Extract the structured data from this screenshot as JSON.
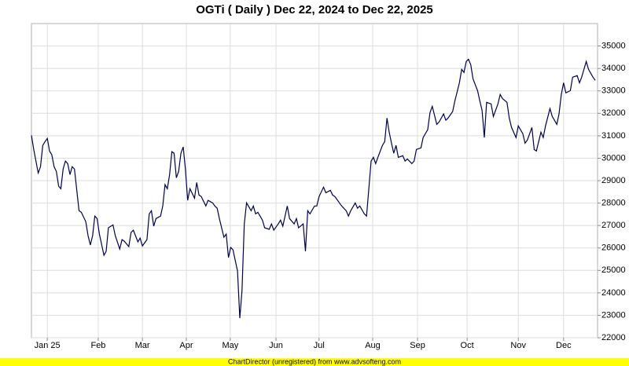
{
  "chart_data": {
    "type": "line",
    "title": "OGTi ( Daily ) Dec 22, 2024 to Dec 22, 2025",
    "footer": "ChartDirector (unregistered) from www.advsofteng.com",
    "x": [
      0,
      1,
      3,
      4,
      5,
      6,
      7,
      8,
      9,
      10,
      11,
      12,
      13,
      14,
      15,
      16,
      17,
      18,
      19,
      21,
      22,
      24,
      25,
      26,
      27,
      28,
      29,
      30,
      32,
      33,
      34,
      36,
      37,
      39,
      40,
      41,
      43,
      44,
      45,
      47,
      48,
      49,
      51,
      52,
      53,
      54,
      55,
      57,
      58,
      59,
      60,
      61,
      62,
      63,
      64,
      65,
      66,
      67,
      68,
      69,
      70,
      72,
      73,
      74,
      75,
      77,
      78,
      80,
      81,
      82,
      83,
      85,
      86,
      87,
      88,
      89,
      91,
      92,
      93,
      94,
      95,
      97,
      98,
      99,
      100,
      102,
      103,
      105,
      106,
      107,
      109,
      110,
      111,
      113,
      114,
      116,
      117,
      118,
      120,
      121,
      122,
      123,
      125,
      126,
      127,
      129,
      130,
      132,
      133,
      134,
      136,
      137,
      139,
      140,
      141,
      143,
      144,
      145,
      147,
      148,
      149,
      150,
      151,
      152,
      153,
      155,
      156,
      157,
      158,
      159,
      160,
      161,
      162,
      164,
      165,
      166,
      168,
      169,
      170,
      172,
      173,
      175,
      176,
      177,
      179,
      180,
      182,
      183,
      184,
      186,
      187,
      189,
      190,
      191,
      192,
      193,
      194,
      195,
      197,
      198,
      199,
      200,
      201,
      203,
      204,
      206,
      207,
      208,
      210,
      211,
      212,
      214,
      215,
      217,
      218,
      219,
      221,
      222,
      223,
      225,
      226,
      227,
      229,
      230,
      232,
      233,
      234,
      235,
      236,
      238,
      239,
      241,
      242,
      243,
      245,
      246,
      248,
      249
    ],
    "series": [
      {
        "name": "OGTi",
        "color": "#000050",
        "values": [
          31020,
          30390,
          29340,
          29620,
          30570,
          30740,
          30880,
          30320,
          30150,
          29620,
          29410,
          28750,
          28640,
          29520,
          29870,
          29760,
          29270,
          29620,
          29520,
          27660,
          27590,
          27170,
          26550,
          26130,
          26550,
          27420,
          27310,
          26620,
          25670,
          25850,
          26900,
          27030,
          26550,
          25950,
          26370,
          26300,
          26060,
          26690,
          26790,
          26270,
          26440,
          26090,
          26370,
          27520,
          27660,
          26970,
          27310,
          27420,
          27870,
          28820,
          28640,
          29270,
          30290,
          30220,
          29130,
          29410,
          30220,
          30500,
          29520,
          28120,
          28640,
          28220,
          28920,
          28360,
          28290,
          27870,
          28120,
          28010,
          27870,
          27770,
          27310,
          26480,
          26620,
          25570,
          26020,
          25920,
          24970,
          22870,
          24100,
          27070,
          28010,
          27660,
          27870,
          27520,
          27590,
          27240,
          26900,
          26830,
          27070,
          26790,
          27070,
          27240,
          26970,
          27870,
          27310,
          27070,
          27310,
          26900,
          27070,
          25850,
          27660,
          27520,
          27870,
          27870,
          28290,
          28710,
          28460,
          28570,
          28360,
          28290,
          28010,
          27870,
          27660,
          27420,
          27660,
          28010,
          27770,
          27870,
          27520,
          27420,
          28640,
          29870,
          30040,
          29760,
          30040,
          30570,
          30740,
          31790,
          31160,
          30670,
          30220,
          30570,
          30040,
          30110,
          29870,
          29970,
          29760,
          29870,
          30390,
          30460,
          30920,
          31270,
          32030,
          32310,
          31510,
          31610,
          31970,
          31690,
          31790,
          32080,
          32560,
          33360,
          33960,
          33820,
          34310,
          34410,
          34170,
          33540,
          33010,
          32560,
          32140,
          30920,
          32490,
          32420,
          31860,
          32420,
          32840,
          32660,
          32490,
          31790,
          31370,
          30920,
          31440,
          31090,
          30670,
          30810,
          31370,
          30390,
          30320,
          31160,
          30920,
          31440,
          32210,
          31860,
          31510,
          31970,
          32840,
          33360,
          32910,
          33010,
          33610,
          33680,
          33360,
          33610,
          34310,
          33960,
          33610,
          33470
        ]
      }
    ],
    "xlim": [
      0,
      250
    ],
    "xticks": [
      {
        "value": 7,
        "label": "Jan 25"
      },
      {
        "value": 29.5,
        "label": "Feb"
      },
      {
        "value": 49,
        "label": "Mar"
      },
      {
        "value": 68.4,
        "label": "Apr"
      },
      {
        "value": 87.8,
        "label": "May"
      },
      {
        "value": 108,
        "label": "Jun"
      },
      {
        "value": 127,
        "label": "Jul"
      },
      {
        "value": 150.7,
        "label": "Aug"
      },
      {
        "value": 170.5,
        "label": "Sep"
      },
      {
        "value": 192.4,
        "label": "Oct"
      },
      {
        "value": 215,
        "label": "Nov"
      },
      {
        "value": 235,
        "label": "Dec"
      }
    ],
    "ylim": [
      22000,
      36000
    ],
    "yticks": [
      22000,
      23000,
      24000,
      25000,
      26000,
      27000,
      28000,
      29000,
      30000,
      31000,
      32000,
      33000,
      34000,
      35000
    ],
    "grid": true
  }
}
